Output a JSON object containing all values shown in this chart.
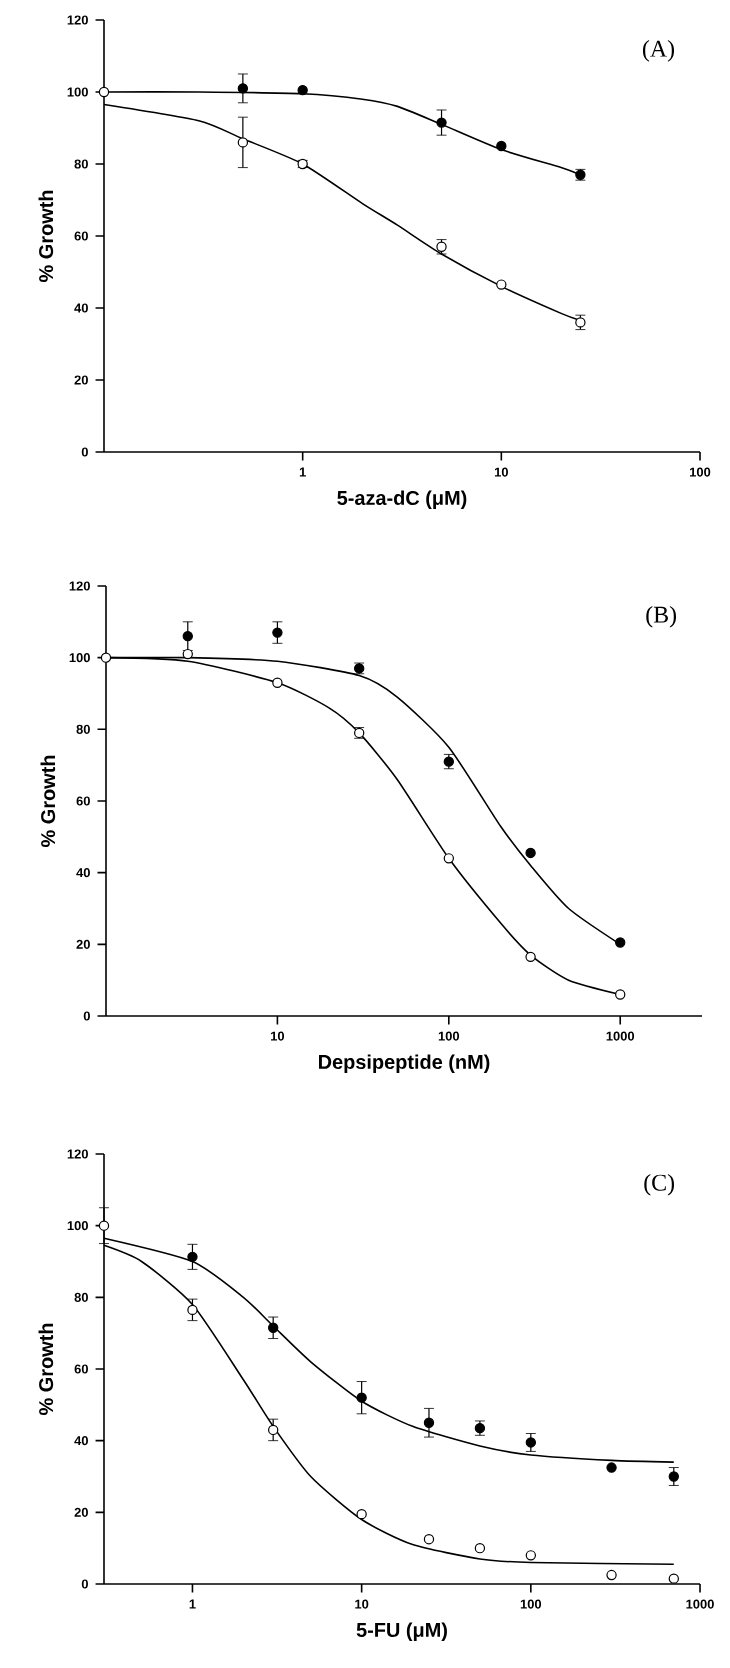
{
  "chart_data": [
    {
      "type": "scatter",
      "title": "(A)",
      "xlabel": "5-aza-dC (μM)",
      "ylabel": "% Growth",
      "log": "x",
      "xlim": [
        0.1,
        100
      ],
      "ylim": [
        0,
        120
      ],
      "xticks": [
        1,
        10,
        100
      ],
      "yticks": [
        0,
        20,
        40,
        60,
        80,
        100,
        120
      ],
      "series": [
        {
          "type": "line",
          "marker": "none",
          "color": "#000000",
          "x": [
            0.1,
            0.3,
            1,
            2,
            3,
            5,
            10,
            20,
            25
          ],
          "values": [
            100,
            100,
            99.5,
            98,
            96,
            91,
            84,
            79,
            77
          ]
        },
        {
          "type": "line",
          "marker": "none",
          "color": "#000000",
          "x": [
            0.1,
            0.3,
            0.5,
            1,
            2,
            3,
            5,
            10,
            20,
            25
          ],
          "values": [
            96.5,
            92,
            87,
            80,
            69,
            63,
            55,
            46,
            38.5,
            36.5
          ]
        },
        {
          "marker": "circle",
          "color": "#000000",
          "x": [
            0.5,
            1,
            5,
            10,
            25
          ],
          "values": [
            101,
            100.5,
            91.5,
            85,
            77
          ],
          "errors": [
            4,
            null,
            3.5,
            null,
            1.5
          ]
        },
        {
          "marker": "circle",
          "color": "#ffffff",
          "x": [
            0.1,
            0.5,
            1,
            5,
            10,
            25
          ],
          "values": [
            100,
            86,
            80,
            57,
            46.5,
            36
          ],
          "errors": [
            null,
            7,
            1,
            2,
            null,
            2
          ]
        }
      ]
    },
    {
      "type": "scatter",
      "title": "(B)",
      "xlabel": "Depsipeptide (nM)",
      "ylabel": "% Growth",
      "log": "x",
      "xlim": [
        1,
        3000
      ],
      "ylim": [
        0,
        120
      ],
      "xticks": [
        10,
        100,
        1000
      ],
      "yticks": [
        0,
        20,
        40,
        60,
        80,
        100,
        120
      ],
      "series": [
        {
          "type": "line",
          "marker": "none",
          "color": "#000000",
          "x": [
            1,
            3,
            10,
            30,
            50,
            100,
            200,
            300,
            500,
            1000
          ],
          "values": [
            100,
            100,
            99,
            95,
            89,
            75,
            53,
            42,
            30,
            20
          ]
        },
        {
          "type": "line",
          "marker": "none",
          "color": "#000000",
          "x": [
            1,
            3,
            10,
            20,
            30,
            50,
            100,
            200,
            300,
            500,
            1000
          ],
          "values": [
            100,
            99,
            93,
            86,
            79,
            66,
            44,
            26,
            17,
            10,
            6
          ]
        },
        {
          "marker": "circle",
          "color": "#000000",
          "x": [
            3,
            10,
            30,
            100,
            300,
            1000
          ],
          "values": [
            106,
            107,
            97,
            71,
            45.5,
            20.5
          ],
          "errors": [
            4,
            3,
            1.5,
            2,
            null,
            null
          ]
        },
        {
          "marker": "circle",
          "color": "#ffffff",
          "x": [
            1,
            3,
            10,
            30,
            100,
            300,
            1000
          ],
          "values": [
            100,
            101,
            93,
            79,
            44,
            16.5,
            6
          ],
          "errors": [
            null,
            null,
            null,
            1.5,
            null,
            null,
            null
          ]
        }
      ]
    },
    {
      "type": "scatter",
      "title": "(C)",
      "xlabel": "5-FU (μM)",
      "ylabel": "% Growth",
      "log": "x",
      "xlim": [
        0.3,
        1000
      ],
      "ylim": [
        0,
        120
      ],
      "xticks": [
        1,
        10,
        100,
        1000
      ],
      "yticks": [
        0,
        20,
        40,
        60,
        80,
        100,
        120
      ],
      "series": [
        {
          "type": "line",
          "marker": "none",
          "color": "#000000",
          "x": [
            0.3,
            1,
            2,
            3,
            5,
            10,
            20,
            50,
            100,
            300,
            700
          ],
          "values": [
            96.5,
            90,
            80,
            72,
            62,
            51,
            44,
            38.5,
            36,
            34.5,
            34
          ]
        },
        {
          "type": "line",
          "marker": "none",
          "color": "#000000",
          "x": [
            0.3,
            0.5,
            1,
            2,
            3,
            5,
            10,
            20,
            50,
            100,
            700
          ],
          "values": [
            94.5,
            90,
            78,
            57,
            44,
            30,
            18,
            11,
            7,
            6,
            5.5
          ]
        },
        {
          "marker": "circle",
          "color": "#000000",
          "x": [
            1,
            3,
            10,
            25,
            50,
            100,
            300,
            700
          ],
          "values": [
            91.3,
            71.5,
            52,
            45,
            43.5,
            39.5,
            32.5,
            30
          ],
          "errors": [
            3.5,
            3,
            4.5,
            4,
            2,
            2.5,
            null,
            2.5
          ]
        },
        {
          "marker": "circle",
          "color": "#ffffff",
          "x": [
            0.3,
            1,
            3,
            10,
            25,
            50,
            100,
            300,
            700
          ],
          "values": [
            100,
            76.5,
            43,
            19.5,
            12.5,
            10,
            8,
            2.5,
            1.5
          ],
          "errors": [
            5,
            3,
            3,
            null,
            null,
            null,
            null,
            null,
            null
          ]
        }
      ]
    }
  ]
}
